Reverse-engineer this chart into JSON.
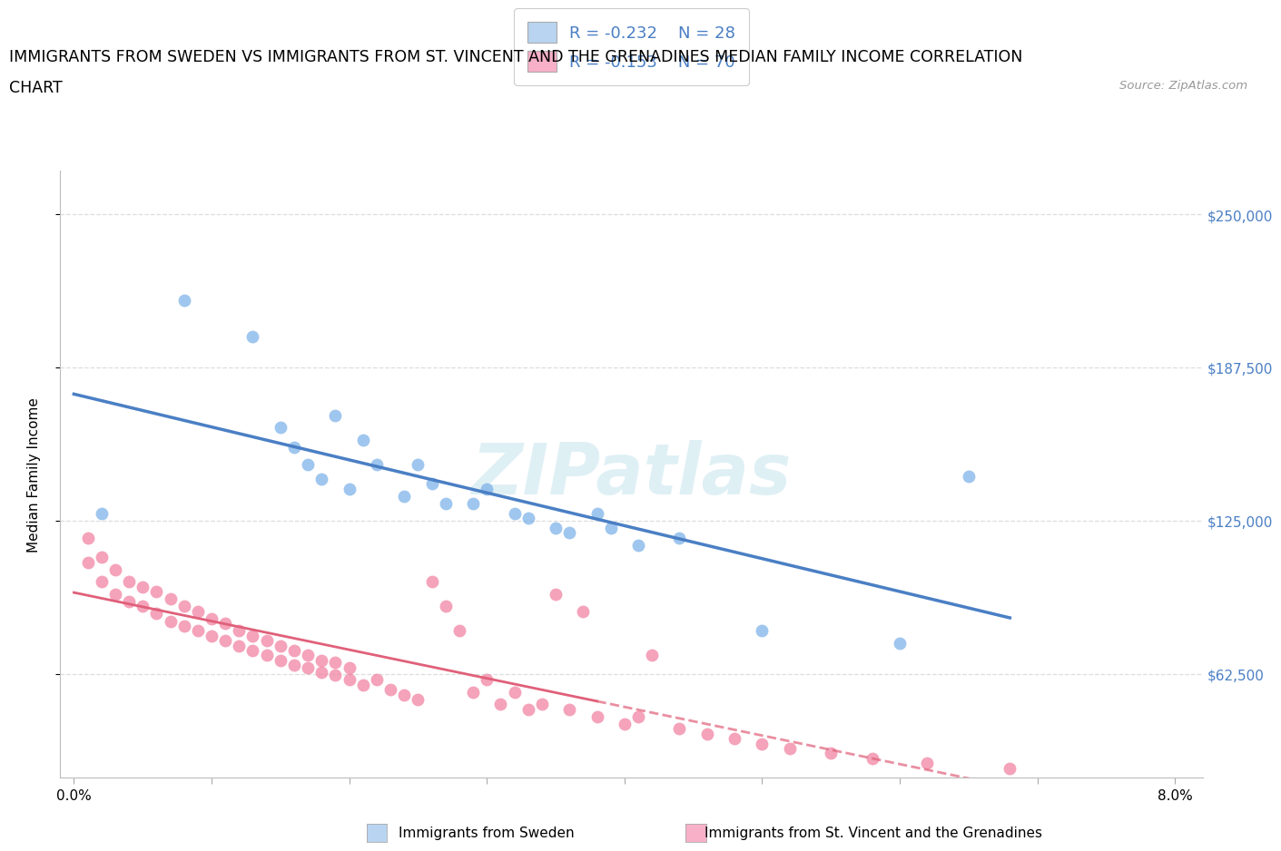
{
  "title_line1": "IMMIGRANTS FROM SWEDEN VS IMMIGRANTS FROM ST. VINCENT AND THE GRENADINES MEDIAN FAMILY INCOME CORRELATION",
  "title_line2": "CHART",
  "source": "Source: ZipAtlas.com",
  "ylabel": "Median Family Income",
  "xlim": [
    -0.001,
    0.082
  ],
  "ylim": [
    20000,
    268000
  ],
  "yticks": [
    62500,
    125000,
    187500,
    250000
  ],
  "ytick_labels": [
    "$62,500",
    "$125,000",
    "$187,500",
    "$250,000"
  ],
  "xticks": [
    0.0,
    0.01,
    0.02,
    0.03,
    0.04,
    0.05,
    0.06,
    0.07,
    0.08
  ],
  "xtick_labels": [
    "0.0%",
    "",
    "",
    "",
    "",
    "",
    "",
    "",
    "8.0%"
  ],
  "sweden_scatter_color": "#7ab0e8",
  "svg_scatter_color": "#f080a0",
  "sweden_fill_color": "#b8d4f0",
  "svg_fill_color": "#f8b0c8",
  "regression_sweden_color": "#4a7fc4",
  "regression_svg_color": "#e0607a",
  "legend_r1": "R = -0.232",
  "legend_n1": "N = 28",
  "legend_r2": "R = -0.153",
  "legend_n2": "N = 70",
  "watermark": "ZIPatlas",
  "sweden_x": [
    0.002,
    0.008,
    0.013,
    0.015,
    0.016,
    0.017,
    0.018,
    0.019,
    0.02,
    0.021,
    0.022,
    0.024,
    0.025,
    0.026,
    0.027,
    0.029,
    0.03,
    0.032,
    0.033,
    0.035,
    0.038,
    0.039,
    0.041,
    0.044,
    0.05,
    0.06,
    0.065,
    0.036
  ],
  "sweden_y": [
    128000,
    215000,
    200000,
    163000,
    155000,
    148000,
    142000,
    168000,
    138000,
    158000,
    148000,
    135000,
    148000,
    140000,
    132000,
    132000,
    138000,
    128000,
    126000,
    122000,
    128000,
    122000,
    115000,
    118000,
    80000,
    75000,
    143000,
    120000
  ],
  "svg_x": [
    0.001,
    0.001,
    0.002,
    0.002,
    0.003,
    0.003,
    0.004,
    0.004,
    0.005,
    0.005,
    0.006,
    0.006,
    0.007,
    0.007,
    0.008,
    0.008,
    0.009,
    0.009,
    0.01,
    0.01,
    0.011,
    0.011,
    0.012,
    0.012,
    0.013,
    0.013,
    0.014,
    0.014,
    0.015,
    0.015,
    0.016,
    0.016,
    0.017,
    0.017,
    0.018,
    0.018,
    0.019,
    0.019,
    0.02,
    0.02,
    0.021,
    0.022,
    0.023,
    0.024,
    0.025,
    0.026,
    0.027,
    0.028,
    0.029,
    0.03,
    0.031,
    0.032,
    0.033,
    0.034,
    0.035,
    0.036,
    0.037,
    0.038,
    0.04,
    0.041,
    0.042,
    0.044,
    0.046,
    0.048,
    0.05,
    0.052,
    0.055,
    0.058,
    0.062,
    0.068
  ],
  "svg_y": [
    108000,
    118000,
    100000,
    110000,
    95000,
    105000,
    92000,
    100000,
    90000,
    98000,
    87000,
    96000,
    84000,
    93000,
    82000,
    90000,
    80000,
    88000,
    78000,
    85000,
    76000,
    83000,
    74000,
    80000,
    72000,
    78000,
    70000,
    76000,
    68000,
    74000,
    66000,
    72000,
    65000,
    70000,
    63000,
    68000,
    62000,
    67000,
    60000,
    65000,
    58000,
    60000,
    56000,
    54000,
    52000,
    100000,
    90000,
    80000,
    55000,
    60000,
    50000,
    55000,
    48000,
    50000,
    95000,
    48000,
    88000,
    45000,
    42000,
    45000,
    70000,
    40000,
    38000,
    36000,
    34000,
    32000,
    30000,
    28000,
    26000,
    24000
  ],
  "background_color": "#ffffff",
  "grid_color": "#dddddd"
}
